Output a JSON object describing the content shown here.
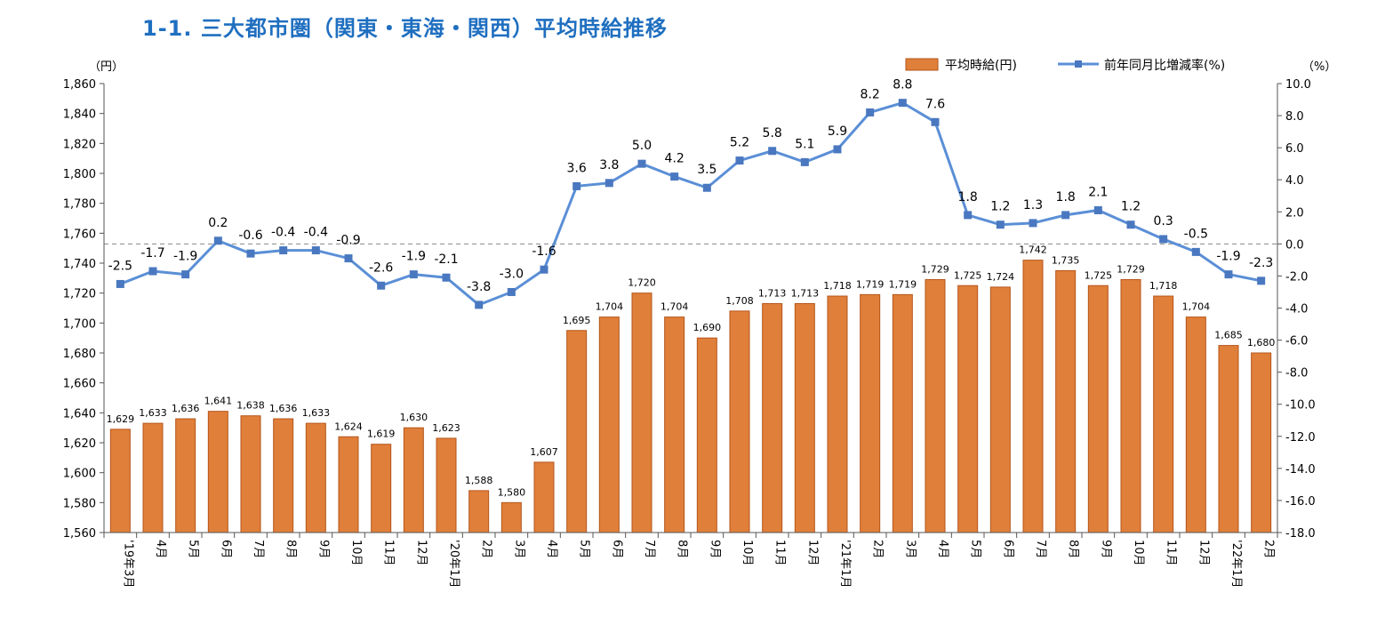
{
  "title": "1-1. 三大都市圏（関東・東海・関西）平均時給推移",
  "colors": {
    "bar": "#e07f3a",
    "bar_stroke": "#b5551a",
    "line": "#5b8fd6",
    "marker": "#4a78c0",
    "title": "#1f6fc0"
  },
  "chart_data": {
    "type": "bar",
    "left_unit": "（円）",
    "right_unit": "（%）",
    "legend": {
      "bar_label": "平均時給(円)",
      "line_label": "前年同月比増減率(%)",
      "placement": "top-right"
    },
    "categories": [
      "'19年3月",
      "4月",
      "5月",
      "6月",
      "7月",
      "8月",
      "9月",
      "10月",
      "11月",
      "12月",
      "'20年1月",
      "2月",
      "3月",
      "4月",
      "5月",
      "6月",
      "7月",
      "8月",
      "9月",
      "10月",
      "11月",
      "12月",
      "'21年1月",
      "2月",
      "3月",
      "4月",
      "5月",
      "6月",
      "7月",
      "8月",
      "9月",
      "10月",
      "11月",
      "12月",
      "'22年1月",
      "2月"
    ],
    "series": [
      {
        "name": "平均時給(円)",
        "type": "bar",
        "axis": "left",
        "values": [
          1629,
          1633,
          1636,
          1641,
          1638,
          1636,
          1633,
          1624,
          1619,
          1630,
          1623,
          1588,
          1580,
          1607,
          1695,
          1704,
          1720,
          1704,
          1690,
          1708,
          1713,
          1713,
          1718,
          1719,
          1719,
          1729,
          1725,
          1724,
          1742,
          1735,
          1725,
          1729,
          1718,
          1704,
          1685,
          1680
        ],
        "labels": [
          "1,629",
          "1,633",
          "1,636",
          "1,641",
          "1,638",
          "1,636",
          "1,633",
          "1,624",
          "1,619",
          "1,630",
          "1,623",
          "1,588",
          "1,580",
          "1,607",
          "1,695",
          "1,704",
          "1,720",
          "1,704",
          "1,690",
          "1,708",
          "1,713",
          "1,713",
          "1,718",
          "1,719",
          "1,719",
          "1,729",
          "1,725",
          "1,724",
          "1,742",
          "1,735",
          "1,725",
          "1,729",
          "1,718",
          "1,704",
          "1,685",
          "1,680"
        ]
      },
      {
        "name": "前年同月比増減率(%)",
        "type": "line",
        "axis": "right",
        "values": [
          -2.5,
          -1.7,
          -1.9,
          0.2,
          -0.6,
          -0.4,
          -0.4,
          -0.9,
          -2.6,
          -1.9,
          -2.1,
          -3.8,
          -3.0,
          -1.6,
          3.6,
          3.8,
          5.0,
          4.2,
          3.5,
          5.2,
          5.8,
          5.1,
          5.9,
          8.2,
          8.8,
          7.6,
          1.8,
          1.2,
          1.3,
          1.8,
          2.1,
          1.2,
          0.3,
          -0.5,
          -1.9,
          -2.3
        ],
        "labels": [
          "-2.5",
          "-1.7",
          "-1.9",
          "0.2",
          "-0.6",
          "-0.4",
          "-0.4",
          "-0.9",
          "-2.6",
          "-1.9",
          "-2.1",
          "-3.8",
          "-3.0",
          "-1.6",
          "3.6",
          "3.8",
          "5.0",
          "4.2",
          "3.5",
          "5.2",
          "5.8",
          "5.1",
          "5.9",
          "8.2",
          "8.8",
          "7.6",
          "1.8",
          "1.2",
          "1.3",
          "1.8",
          "2.1",
          "1.2",
          "0.3",
          "-0.5",
          "-1.9",
          "-2.3"
        ]
      }
    ],
    "y_left": {
      "min": 1560,
      "max": 1860,
      "step": 20,
      "tick_labels": [
        "1,560",
        "1,580",
        "1,600",
        "1,620",
        "1,640",
        "1,660",
        "1,680",
        "1,700",
        "1,720",
        "1,740",
        "1,760",
        "1,780",
        "1,800",
        "1,820",
        "1,840",
        "1,860"
      ]
    },
    "y_right": {
      "min": -18,
      "max": 10,
      "step": 2,
      "tick_labels": [
        "-18.0",
        "-16.0",
        "-14.0",
        "-12.0",
        "-10.0",
        "-8.0",
        "-6.0",
        "-4.0",
        "-2.0",
        "0.0",
        "2.0",
        "4.0",
        "6.0",
        "8.0",
        "10.0"
      ]
    },
    "zero_reference_line": "dashed",
    "grid": false
  }
}
